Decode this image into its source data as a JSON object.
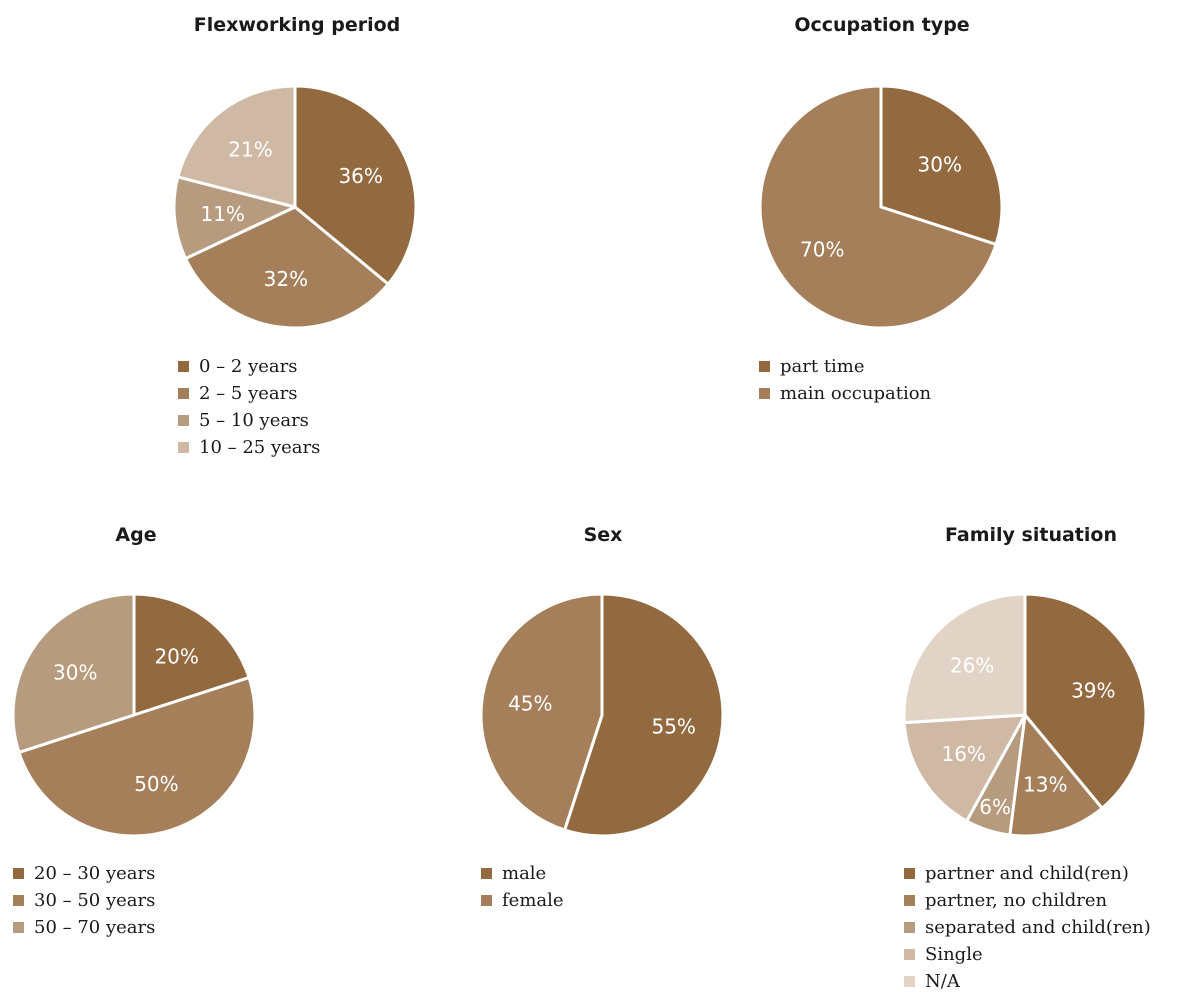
{
  "chart_data": [
    {
      "type": "pie",
      "title": "Flexworking period",
      "categories": [
        "0 – 2 years",
        "2 – 5 years",
        "5 – 10 years",
        "10 – 25 years"
      ],
      "values": [
        36,
        32,
        11,
        21
      ],
      "value_labels": [
        "36%",
        "32%",
        "11%",
        "21%"
      ],
      "colors": [
        "#936a40",
        "#a47f5a",
        "#b69b7e",
        "#cfb9a4"
      ],
      "legend": "below"
    },
    {
      "type": "pie",
      "title": "Occupation type",
      "categories": [
        "part time",
        "main occupation"
      ],
      "values": [
        30,
        70
      ],
      "value_labels": [
        "30%",
        "70%"
      ],
      "colors": [
        "#936a40",
        "#a47f5a"
      ],
      "legend": "below"
    },
    {
      "type": "pie",
      "title": "Age",
      "categories": [
        "20 – 30 years",
        "30 – 50 years",
        "50 – 70 years"
      ],
      "values": [
        20,
        50,
        30
      ],
      "value_labels": [
        "20%",
        "50%",
        "30%"
      ],
      "colors": [
        "#936a40",
        "#a47f5a",
        "#b69b7e"
      ],
      "legend": "below"
    },
    {
      "type": "pie",
      "title": "Sex",
      "categories": [
        "male",
        "female"
      ],
      "values": [
        55,
        45
      ],
      "value_labels": [
        "55%",
        "45%"
      ],
      "colors": [
        "#936a40",
        "#a47f5a"
      ],
      "legend": "below"
    },
    {
      "type": "pie",
      "title": "Family situation",
      "categories": [
        "partner and child(ren)",
        "partner, no children",
        "separated and child(ren)",
        "Single",
        "N/A"
      ],
      "values": [
        39,
        13,
        6,
        16,
        26
      ],
      "value_labels": [
        "39%",
        "13%",
        "6%",
        "16%",
        "26%"
      ],
      "colors": [
        "#936a40",
        "#a47f5a",
        "#b69b7e",
        "#cfb9a4",
        "#e1d4c6"
      ],
      "legend": "below"
    }
  ]
}
